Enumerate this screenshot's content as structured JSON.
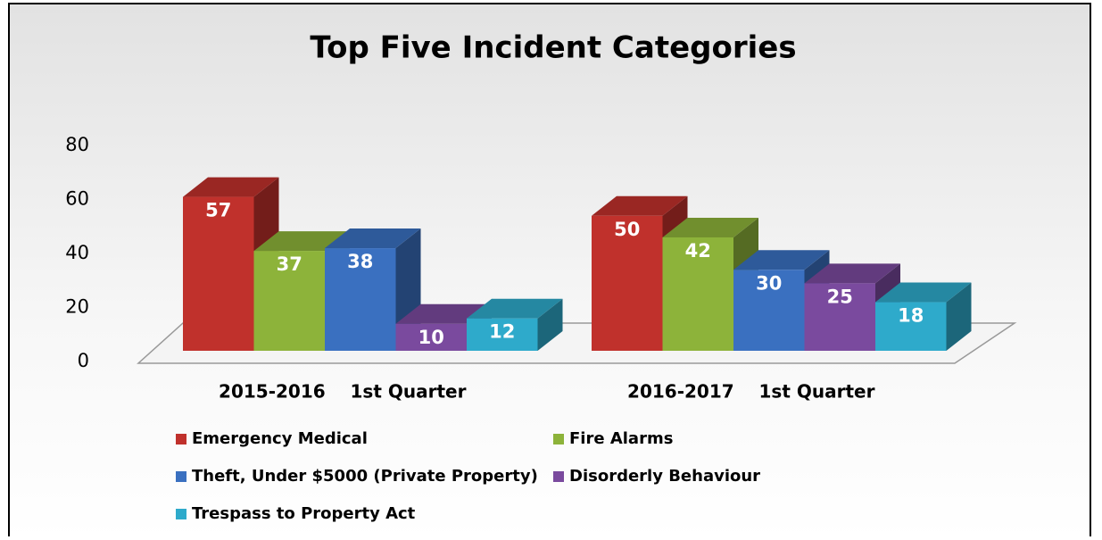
{
  "chart_data": {
    "type": "bar",
    "title": "Top Five Incident Categories",
    "categories": [
      "2015-2016    1st Quarter",
      "2016-2017    1st Quarter"
    ],
    "series": [
      {
        "name": "Emergency Medical",
        "color": "#c0312c",
        "values": [
          57,
          50
        ]
      },
      {
        "name": "Fire Alarms",
        "color": "#8db33a",
        "values": [
          37,
          42
        ]
      },
      {
        "name": "Theft, Under $5000 (Private Property)",
        "color": "#3a70c0",
        "values": [
          38,
          30
        ]
      },
      {
        "name": "Disorderly Behaviour",
        "color": "#7a4a9e",
        "values": [
          10,
          25
        ]
      },
      {
        "name": "Trespass to Property Act",
        "color": "#2eaacb",
        "values": [
          12,
          18
        ]
      }
    ],
    "ylim": [
      0,
      80
    ],
    "yticks": [
      0,
      20,
      40,
      60,
      80
    ],
    "legend": "bottom"
  }
}
